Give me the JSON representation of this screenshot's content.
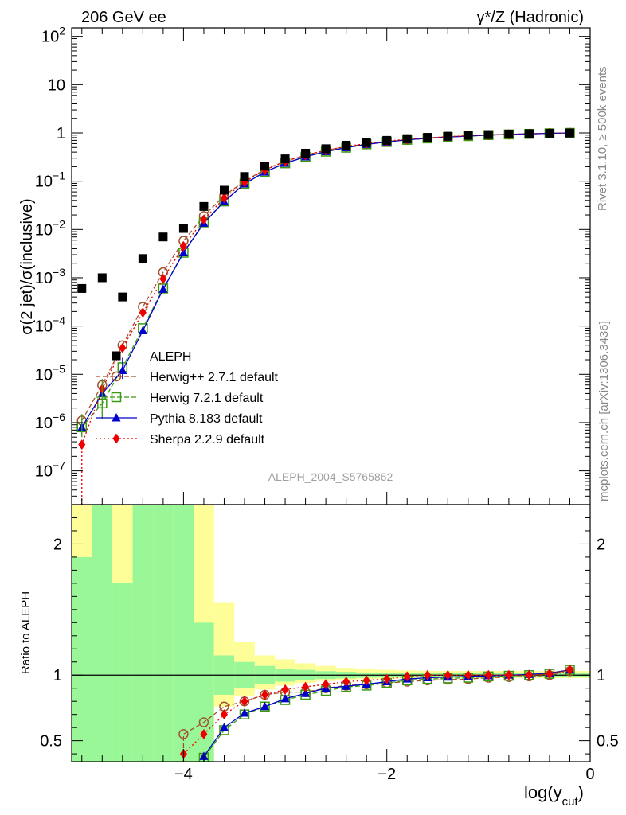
{
  "header": {
    "left": "206 GeV ee",
    "right": "γ*/Z (Hadronic)"
  },
  "side_labels": {
    "rivet": "Rivet 3.1.10, ≥ 500k events",
    "mcplots": "mcplots.cern.ch [arXiv:1306.3436]"
  },
  "watermark": "ALEPH_2004_S5765862",
  "colors": {
    "data": "#000000",
    "herwigpp": "#a0522d",
    "herwig7": "#3a9a10",
    "pythia": "#0000cc",
    "sherpa": "#ee0000",
    "band_inner": "#99f797",
    "band_outer": "#fefe99"
  },
  "chart_data": [
    {
      "type": "scatter",
      "title": "",
      "ylabel": "σ(2 jet)/σ(inclusive)",
      "xlabel": "log(y_cut)",
      "yscale": "log",
      "xlim": [
        -5.1,
        0.0
      ],
      "ylim": [
        2e-08,
        150
      ],
      "yticks": [
        {
          "v": 1e-07,
          "base": "10",
          "exp": "−7"
        },
        {
          "v": 1e-06,
          "base": "10",
          "exp": "−6"
        },
        {
          "v": 1e-05,
          "base": "10",
          "exp": "−5"
        },
        {
          "v": 0.0001,
          "base": "10",
          "exp": "−4"
        },
        {
          "v": 0.001,
          "base": "10",
          "exp": "−3"
        },
        {
          "v": 0.01,
          "base": "10",
          "exp": "−2"
        },
        {
          "v": 0.1,
          "base": "10",
          "exp": "−1"
        },
        {
          "v": 1,
          "base": "1",
          "exp": ""
        },
        {
          "v": 10,
          "base": "10",
          "exp": ""
        },
        {
          "v": 100,
          "base": "10",
          "exp": "2"
        }
      ],
      "x": [
        -5.0,
        -4.8,
        -4.6,
        -4.4,
        -4.2,
        -4.0,
        -3.8,
        -3.6,
        -3.4,
        -3.2,
        -3.0,
        -2.8,
        -2.6,
        -2.4,
        -2.2,
        -2.0,
        -1.8,
        -1.6,
        -1.4,
        -1.2,
        -1.0,
        -0.8,
        -0.6,
        -0.4,
        -0.2
      ],
      "series": [
        {
          "name": "ALEPH",
          "key": "aleph",
          "values": [
            0.0006,
            0.001,
            0.0004,
            0.0025,
            0.007,
            0.0105,
            0.03,
            0.065,
            0.125,
            0.205,
            0.29,
            0.38,
            0.47,
            0.555,
            0.63,
            0.7,
            0.76,
            0.81,
            0.855,
            0.89,
            0.92,
            0.945,
            0.965,
            0.985,
            0.995
          ]
        },
        {
          "name": "Herwig++ 2.7.1 default",
          "key": "herwigpp",
          "values": [
            1.1e-06,
            6e-06,
            4e-05,
            0.00025,
            0.0013,
            0.0058,
            0.019,
            0.05,
            0.1,
            0.175,
            0.26,
            0.345,
            0.435,
            0.52,
            0.59,
            0.66,
            0.72,
            0.78,
            0.83,
            0.865,
            0.9,
            0.93,
            0.955,
            0.98,
            1.0
          ]
        },
        {
          "name": "Herwig 7.2.1 default",
          "key": "herwig7",
          "values": [
            8e-07,
            2.5e-06,
            1.4e-05,
            9e-05,
            0.0006,
            0.0033,
            0.014,
            0.038,
            0.088,
            0.155,
            0.235,
            0.32,
            0.41,
            0.495,
            0.58,
            0.65,
            0.72,
            0.77,
            0.82,
            0.86,
            0.9,
            0.93,
            0.955,
            0.98,
            1.0
          ]
        },
        {
          "name": "Pythia 8.183 default",
          "key": "pythia",
          "values": [
            8e-07,
            4e-06,
            1.2e-05,
            8e-05,
            0.00058,
            0.0033,
            0.0135,
            0.038,
            0.088,
            0.155,
            0.235,
            0.32,
            0.41,
            0.495,
            0.58,
            0.65,
            0.72,
            0.77,
            0.82,
            0.86,
            0.9,
            0.93,
            0.955,
            0.98,
            1.0
          ]
        },
        {
          "name": "Sherpa 2.2.9 default",
          "key": "sherpa",
          "values": [
            3.5e-07,
            5e-06,
            3.5e-05,
            0.00019,
            0.00095,
            0.0045,
            0.016,
            0.045,
            0.095,
            0.17,
            0.255,
            0.345,
            0.435,
            0.525,
            0.6,
            0.675,
            0.74,
            0.79,
            0.835,
            0.875,
            0.905,
            0.935,
            0.96,
            0.985,
            1.0
          ]
        }
      ]
    },
    {
      "type": "scatter",
      "title": "",
      "ylabel": "Ratio to ALEPH",
      "xlabel": "log(y_cut)",
      "xlim": [
        -5.1,
        0.0
      ],
      "ylim": [
        0.34,
        2.3
      ],
      "yticks": [
        0.5,
        1,
        2
      ],
      "xticks": [
        {
          "v": -4,
          "label": "−4"
        },
        {
          "v": -2,
          "label": "−2"
        },
        {
          "v": 0,
          "label": "0"
        }
      ],
      "x": [
        -5.0,
        -4.8,
        -4.6,
        -4.4,
        -4.2,
        -4.0,
        -3.8,
        -3.6,
        -3.4,
        -3.2,
        -3.0,
        -2.8,
        -2.6,
        -2.4,
        -2.2,
        -2.0,
        -1.8,
        -1.6,
        -1.4,
        -1.2,
        -1.0,
        -0.8,
        -0.6,
        -0.4,
        -0.2
      ],
      "bands": {
        "edges": [
          -5.1,
          -4.9,
          -4.7,
          -4.5,
          -4.3,
          -4.1,
          -3.9,
          -3.7,
          -3.5,
          -3.3,
          -3.1,
          -2.9,
          -2.7,
          -2.5,
          -2.3,
          -2.1,
          -1.9,
          -1.7,
          -1.5,
          -1.3,
          -1.1,
          -0.9,
          -0.7,
          -0.5,
          -0.3,
          -0.1,
          0.0
        ],
        "inner_lo": [
          0.34,
          0.34,
          0.34,
          0.34,
          0.34,
          0.34,
          0.34,
          0.85,
          0.9,
          0.93,
          0.95,
          0.96,
          0.97,
          0.975,
          0.98,
          0.982,
          0.984,
          0.985,
          0.985,
          0.985,
          0.985,
          0.985,
          0.985,
          0.985,
          0.985,
          0.985
        ],
        "inner_hi": [
          1.9,
          2.3,
          1.7,
          2.3,
          2.3,
          2.3,
          1.4,
          1.15,
          1.1,
          1.07,
          1.05,
          1.04,
          1.03,
          1.025,
          1.02,
          1.018,
          1.016,
          1.015,
          1.015,
          1.015,
          1.015,
          1.015,
          1.015,
          1.015,
          1.015,
          1.015
        ],
        "outer_lo": [
          0.34,
          0.42,
          0.34,
          0.34,
          0.34,
          0.34,
          0.34,
          0.76,
          0.84,
          0.89,
          0.92,
          0.94,
          0.955,
          0.965,
          0.97,
          0.973,
          0.975,
          0.977,
          0.977,
          0.977,
          0.977,
          0.977,
          0.977,
          0.977,
          0.977,
          0.977
        ],
        "outer_hi": [
          2.3,
          2.3,
          2.3,
          2.3,
          2.3,
          2.3,
          2.3,
          1.55,
          1.25,
          1.15,
          1.12,
          1.09,
          1.07,
          1.055,
          1.045,
          1.04,
          1.036,
          1.033,
          1.032,
          1.032,
          1.032,
          1.032,
          1.032,
          1.032,
          1.032,
          1.032
        ]
      },
      "series": [
        {
          "name": "Herwig++ 2.7.1 default",
          "key": "herwigpp",
          "values": [
            null,
            null,
            null,
            null,
            null,
            0.55,
            0.64,
            0.76,
            0.8,
            0.85,
            0.87,
            0.87,
            0.9,
            0.92,
            0.93,
            0.94,
            0.95,
            0.96,
            0.965,
            0.97,
            0.98,
            0.985,
            0.99,
            1.0,
            1.03
          ]
        },
        {
          "name": "Herwig 7.2.1 default",
          "key": "herwig7",
          "values": [
            null,
            null,
            null,
            null,
            null,
            null,
            0.37,
            0.58,
            0.7,
            0.76,
            0.81,
            0.85,
            0.88,
            0.91,
            0.92,
            0.94,
            0.96,
            0.97,
            0.975,
            0.98,
            0.99,
            0.995,
            1.0,
            1.01,
            1.04
          ]
        },
        {
          "name": "Pythia 8.183 default",
          "key": "pythia",
          "values": [
            null,
            null,
            null,
            null,
            null,
            null,
            0.38,
            0.6,
            0.71,
            0.76,
            0.82,
            0.86,
            0.9,
            0.915,
            0.93,
            0.95,
            0.97,
            0.98,
            0.985,
            0.99,
            0.995,
            1.0,
            1.005,
            1.015,
            1.04
          ]
        },
        {
          "name": "Sherpa 2.2.9 default",
          "key": "sherpa",
          "values": [
            null,
            null,
            null,
            null,
            null,
            0.4,
            0.55,
            0.7,
            0.8,
            0.85,
            0.89,
            0.91,
            0.93,
            0.95,
            0.96,
            0.97,
            0.99,
            1.0,
            1.0,
            1.0,
            1.0,
            1.0,
            1.0,
            1.01,
            1.04
          ]
        }
      ]
    }
  ]
}
